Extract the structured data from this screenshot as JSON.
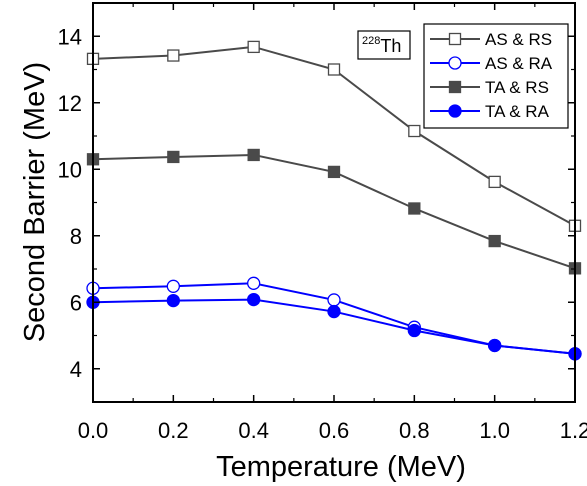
{
  "chart_data": {
    "type": "line",
    "xlabel": "Temperature (MeV)",
    "ylabel": "Second Barrier (MeV)",
    "xlim": [
      0.0,
      1.2
    ],
    "ylim": [
      3.0,
      15.0
    ],
    "xticks": [
      0.0,
      0.2,
      0.4,
      0.6,
      0.8,
      1.0,
      1.2
    ],
    "xtick_labels": [
      "0.0",
      "0.2",
      "0.4",
      "0.6",
      "0.8",
      "1.0",
      "1.2"
    ],
    "yticks": [
      4,
      6,
      8,
      10,
      12,
      14
    ],
    "ytick_labels": [
      "4",
      "6",
      "8",
      "10",
      "12",
      "14"
    ],
    "grid": false,
    "legend_position": "top-right",
    "annotation": {
      "superscript": "228",
      "text": "Th"
    },
    "series": [
      {
        "name": "AS & RS",
        "color": "#4a4a4a",
        "marker": "square-open",
        "x": [
          0.0,
          0.2,
          0.4,
          0.6,
          0.8,
          1.0,
          1.2
        ],
        "y": [
          13.32,
          13.42,
          13.68,
          13.0,
          11.15,
          9.62,
          8.3
        ]
      },
      {
        "name": "AS & RA",
        "color": "#0000ff",
        "marker": "circle-open",
        "x": [
          0.0,
          0.2,
          0.4,
          0.6,
          0.8,
          1.0,
          1.2
        ],
        "y": [
          6.42,
          6.48,
          6.57,
          6.07,
          5.25,
          4.7,
          4.45
        ]
      },
      {
        "name": "TA & RS",
        "color": "#4a4a4a",
        "marker": "square-filled",
        "x": [
          0.0,
          0.2,
          0.4,
          0.6,
          0.8,
          1.0,
          1.2
        ],
        "y": [
          10.3,
          10.37,
          10.43,
          9.92,
          8.82,
          7.84,
          7.02
        ]
      },
      {
        "name": "TA & RA",
        "color": "#0000ff",
        "marker": "circle-filled",
        "x": [
          0.0,
          0.2,
          0.4,
          0.6,
          0.8,
          1.0,
          1.2
        ],
        "y": [
          6.0,
          6.05,
          6.08,
          5.72,
          5.15,
          4.7,
          4.45
        ]
      }
    ]
  }
}
